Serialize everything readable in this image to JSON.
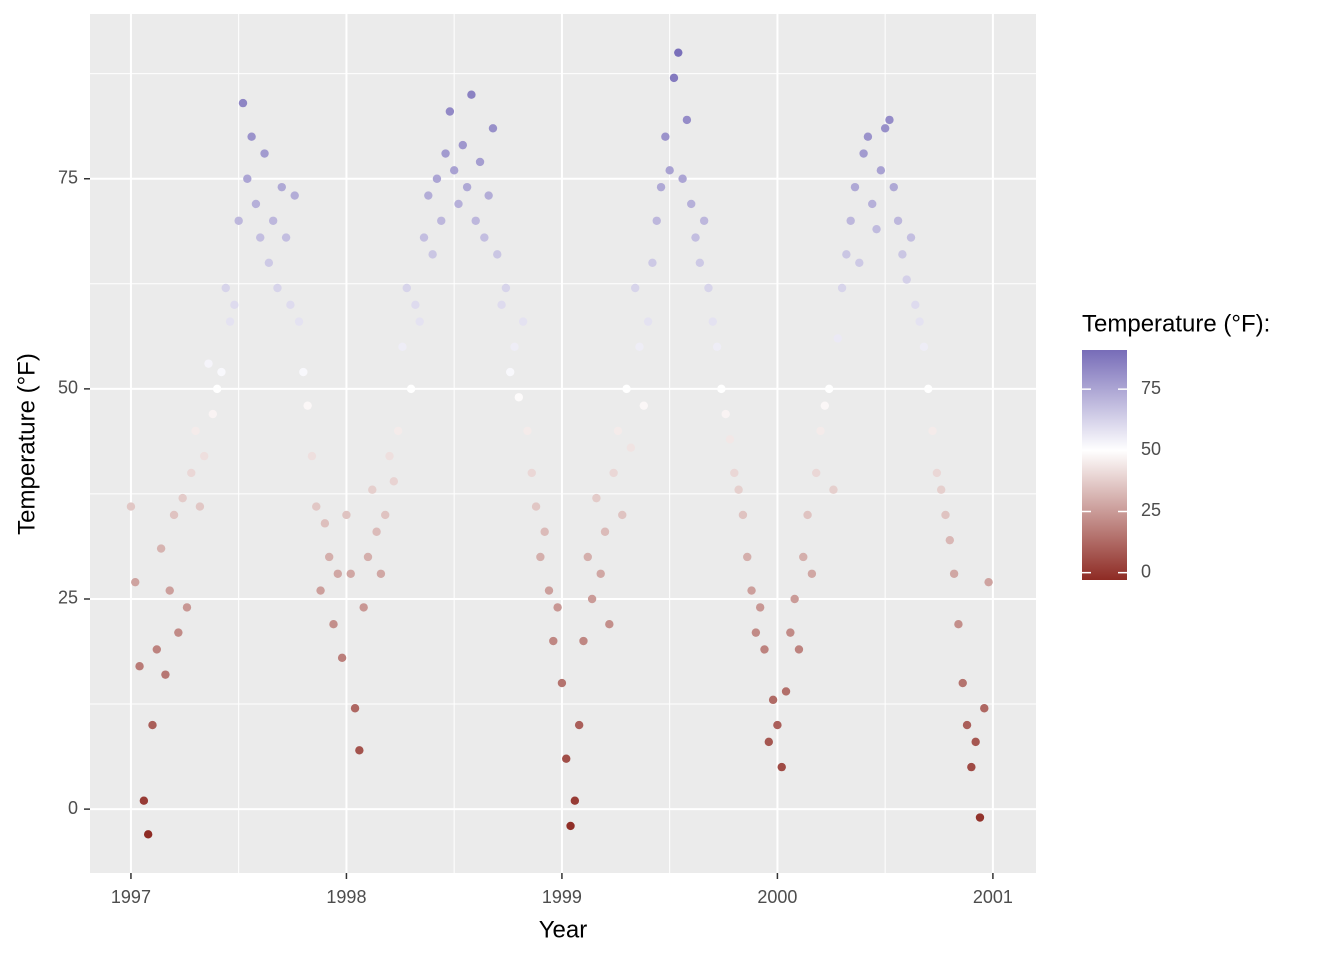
{
  "chart_data": {
    "type": "scatter",
    "x_label": "Year",
    "y_label": "Temperature (°F)",
    "legend_title": "Temperature (°F):",
    "xlim": [
      1996.81,
      2001.2
    ],
    "xticks": [
      1997,
      1998,
      1999,
      2000,
      2001
    ],
    "ylim": [
      -7.6,
      94.6
    ],
    "yticks": [
      0,
      25,
      50,
      75
    ],
    "grid": true,
    "color_scale": {
      "low": "#8e2b24",
      "mid": "#ffffff",
      "high": "#776cb8",
      "midpoint": 50,
      "limits": [
        -3,
        91
      ]
    },
    "legend_ticks": [
      0,
      25,
      50,
      75
    ],
    "x": [
      1997.0,
      1997.02,
      1997.04,
      1997.06,
      1997.08,
      1997.1,
      1997.12,
      1997.14,
      1997.16,
      1997.18,
      1997.2,
      1997.22,
      1997.24,
      1997.26,
      1997.28,
      1997.3,
      1997.32,
      1997.34,
      1997.36,
      1997.38,
      1997.4,
      1997.42,
      1997.44,
      1997.46,
      1997.48,
      1997.5,
      1997.52,
      1997.54,
      1997.56,
      1997.58,
      1997.6,
      1997.62,
      1997.64,
      1997.66,
      1997.68,
      1997.7,
      1997.72,
      1997.74,
      1997.76,
      1997.78,
      1997.8,
      1997.82,
      1997.84,
      1997.86,
      1997.88,
      1997.9,
      1997.92,
      1997.94,
      1997.96,
      1997.98,
      1998.0,
      1998.02,
      1998.04,
      1998.06,
      1998.08,
      1998.1,
      1998.12,
      1998.14,
      1998.16,
      1998.18,
      1998.2,
      1998.22,
      1998.24,
      1998.26,
      1998.28,
      1998.3,
      1998.32,
      1998.34,
      1998.36,
      1998.38,
      1998.4,
      1998.42,
      1998.44,
      1998.46,
      1998.48,
      1998.5,
      1998.52,
      1998.54,
      1998.56,
      1998.58,
      1998.6,
      1998.62,
      1998.64,
      1998.66,
      1998.68,
      1998.7,
      1998.72,
      1998.74,
      1998.76,
      1998.78,
      1998.8,
      1998.82,
      1998.84,
      1998.86,
      1998.88,
      1998.9,
      1998.92,
      1998.94,
      1998.96,
      1998.98,
      1999.0,
      1999.02,
      1999.04,
      1999.06,
      1999.08,
      1999.1,
      1999.12,
      1999.14,
      1999.16,
      1999.18,
      1999.2,
      1999.22,
      1999.24,
      1999.26,
      1999.28,
      1999.3,
      1999.32,
      1999.34,
      1999.36,
      1999.38,
      1999.4,
      1999.42,
      1999.44,
      1999.46,
      1999.48,
      1999.5,
      1999.52,
      1999.54,
      1999.56,
      1999.58,
      1999.6,
      1999.62,
      1999.64,
      1999.66,
      1999.68,
      1999.7,
      1999.72,
      1999.74,
      1999.76,
      1999.78,
      1999.8,
      1999.82,
      1999.84,
      1999.86,
      1999.88,
      1999.9,
      1999.92,
      1999.94,
      1999.96,
      1999.98,
      2000.0,
      2000.02,
      2000.04,
      2000.06,
      2000.08,
      2000.1,
      2000.12,
      2000.14,
      2000.16,
      2000.18,
      2000.2,
      2000.22,
      2000.24,
      2000.26,
      2000.28,
      2000.3,
      2000.32,
      2000.34,
      2000.36,
      2000.38,
      2000.4,
      2000.42,
      2000.44,
      2000.46,
      2000.48,
      2000.5,
      2000.52,
      2000.54,
      2000.56,
      2000.58,
      2000.6,
      2000.62,
      2000.64,
      2000.66,
      2000.68,
      2000.7,
      2000.72,
      2000.74,
      2000.76,
      2000.78,
      2000.8,
      2000.82,
      2000.84,
      2000.86,
      2000.88,
      2000.9,
      2000.92,
      2000.94,
      2000.96,
      2000.98
    ],
    "values": [
      36,
      27,
      17,
      1,
      -3,
      10,
      19,
      31,
      16,
      26,
      35,
      21,
      37,
      24,
      40,
      45,
      36,
      42,
      53,
      47,
      50,
      52,
      62,
      58,
      60,
      70,
      84,
      75,
      80,
      72,
      68,
      78,
      65,
      70,
      62,
      74,
      68,
      60,
      73,
      58,
      52,
      48,
      42,
      36,
      26,
      34,
      30,
      22,
      28,
      18,
      35,
      28,
      12,
      7,
      24,
      30,
      38,
      33,
      28,
      35,
      42,
      39,
      45,
      55,
      62,
      50,
      60,
      58,
      68,
      73,
      66,
      75,
      70,
      78,
      83,
      76,
      72,
      79,
      74,
      85,
      70,
      77,
      68,
      73,
      81,
      66,
      60,
      62,
      52,
      55,
      49,
      58,
      45,
      40,
      36,
      30,
      33,
      26,
      20,
      24,
      15,
      6,
      -2,
      1,
      10,
      20,
      30,
      25,
      37,
      28,
      33,
      22,
      40,
      45,
      35,
      50,
      43,
      62,
      55,
      48,
      58,
      65,
      70,
      74,
      80,
      76,
      87,
      90,
      75,
      82,
      72,
      68,
      65,
      70,
      62,
      58,
      55,
      50,
      47,
      44,
      40,
      38,
      35,
      30,
      26,
      21,
      24,
      19,
      8,
      13,
      10,
      5,
      14,
      21,
      25,
      19,
      30,
      35,
      28,
      40,
      45,
      48,
      50,
      38,
      56,
      62,
      66,
      70,
      74,
      65,
      78,
      80,
      72,
      69,
      76,
      81,
      82,
      74,
      70,
      66,
      63,
      68,
      60,
      58,
      55,
      50,
      45,
      40,
      38,
      35,
      32,
      28,
      22,
      15,
      10,
      5,
      8,
      -1,
      12,
      27
    ]
  }
}
